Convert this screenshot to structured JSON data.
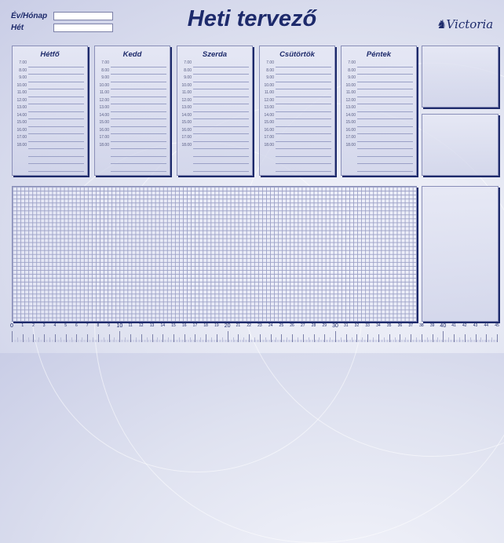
{
  "header": {
    "title": "Heti tervező",
    "year_month_label": "Év/Hónap",
    "week_label": "Hét",
    "year_month_value": "",
    "week_value": "",
    "logo": "Victoria"
  },
  "days": [
    "Hétfő",
    "Kedd",
    "Szerda",
    "Csütörtök",
    "Péntek"
  ],
  "hours": [
    "7.00",
    "8.00",
    "9.00",
    "10.00",
    "11.00",
    "12.00",
    "13.00",
    "14.00",
    "15.00",
    "16.00",
    "17.00",
    "18.00"
  ],
  "ruler": {
    "min": 0,
    "max": 45,
    "unit": "cm"
  },
  "colors": {
    "accent": "#1d2a6b",
    "background": "#dfe2f0"
  }
}
